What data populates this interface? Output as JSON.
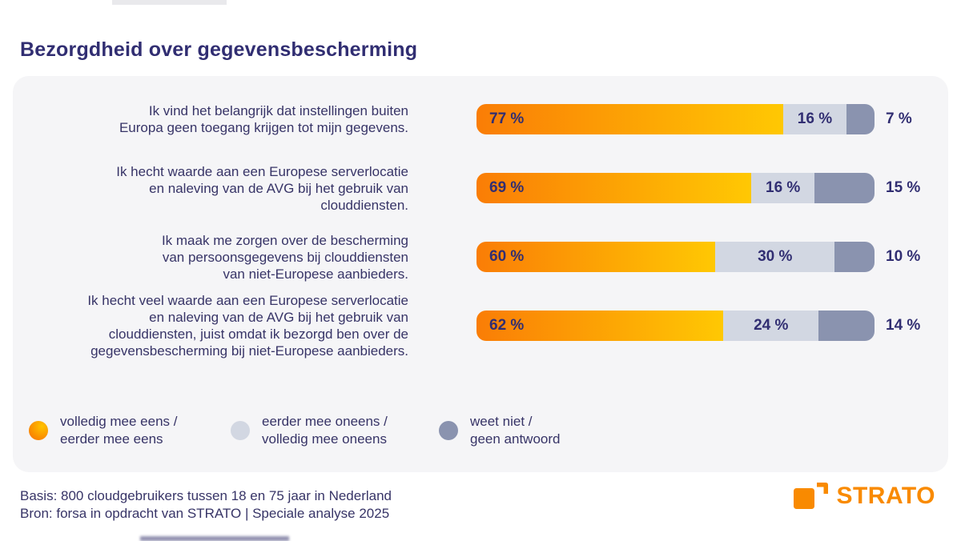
{
  "title": "Bezorgdheid over gegevensbescherming",
  "chart_data": {
    "type": "bar",
    "orientation": "horizontal",
    "stacked": true,
    "title": "Bezorgdheid over gegevensbescherming",
    "value_suffix": " %",
    "xlim": [
      0,
      100
    ],
    "grid": false,
    "legend_position": "bottom",
    "categories": [
      "Ik vind het belangrijk dat instellingen buiten\nEuropa geen toegang krijgen tot mijn gegevens.",
      "Ik hecht waarde aan een Europese serverlocatie\nen naleving van de AVG bij het gebruik van\nclouddiensten.",
      "Ik maak me zorgen over de bescherming\nvan persoonsgegevens bij clouddiensten\nvan niet-Europese aanbieders.",
      "Ik hecht veel waarde aan een Europese serverlocatie\nen naleving van de AVG bij het gebruik van\nclouddiensten, juist omdat ik bezorgd ben over de\ngegevensbescherming bij niet-Europese aanbieders."
    ],
    "series": [
      {
        "name": "volledig mee eens / eerder mee eens",
        "values": [
          77,
          69,
          60,
          62
        ],
        "color": "linear-gradient #FA7D06 to #FFC803",
        "labels_inside": "left"
      },
      {
        "name": "eerder mee oneens / volledig mee oneens",
        "values": [
          16,
          16,
          30,
          24
        ],
        "color": "#D2D7E2",
        "labels_inside": "center"
      },
      {
        "name": "weet niet / geen antwoord",
        "values": [
          7,
          15,
          10,
          14
        ],
        "color": "#8A93AF",
        "labels_inside": "outside-right"
      }
    ]
  },
  "legend": [
    {
      "label": "volledig mee eens /\neerder mee eens",
      "color": "#F98300"
    },
    {
      "label": "eerder mee oneens /\nvolledig mee oneens",
      "color": "#D2D7E2"
    },
    {
      "label": "weet niet /\ngeen antwoord",
      "color": "#8A93AF"
    }
  ],
  "footer": {
    "line1": "Basis: 800 cloudgebruikers tussen 18 en 75 jaar in Nederland",
    "line2": "Bron: forsa in opdracht van STRATO | Speciale analyse 2025"
  },
  "logo": {
    "text": "STRATO",
    "color": "#F98A00"
  },
  "colors": {
    "title_text": "#312E72",
    "body_text": "#373467",
    "card_background": "#F5F5F7",
    "page_background": "#FFFFFF",
    "agree_gradient_start": "#FA7D06",
    "agree_gradient_end": "#FFC803",
    "disagree_gray": "#D2D7E2",
    "unknown_bluegray": "#8A93AF",
    "brand_orange": "#F98A00"
  }
}
